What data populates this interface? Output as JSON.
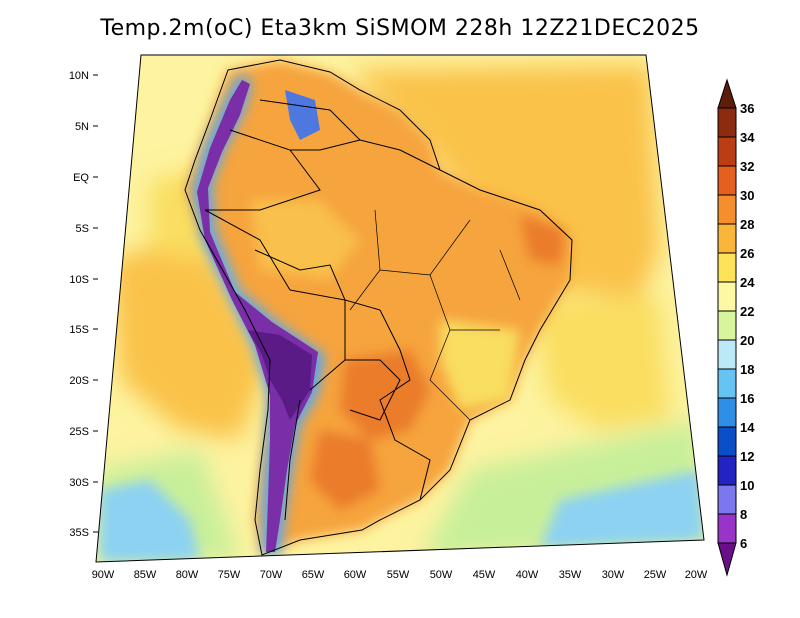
{
  "title": "Temp.2m(oC) Eta3km SiSMOM 228h 12Z21DEC2025",
  "latitude_labels": [
    "10N",
    "5N",
    "EQ",
    "5S",
    "10S",
    "15S",
    "20S",
    "25S",
    "30S",
    "35S"
  ],
  "longitude_labels": [
    "90W",
    "85W",
    "80W",
    "75W",
    "70W",
    "65W",
    "60W",
    "55W",
    "50W",
    "45W",
    "40W",
    "35W",
    "30W",
    "25W",
    "20W"
  ],
  "colorbar": {
    "labels": [
      "6",
      "8",
      "10",
      "12",
      "14",
      "16",
      "18",
      "20",
      "22",
      "24",
      "26",
      "28",
      "30",
      "32",
      "34",
      "36"
    ],
    "colors": [
      "#6a0f8a",
      "#9a34c8",
      "#7a78ec",
      "#2323c4",
      "#0a4fc8",
      "#2f8fe6",
      "#66c4f4",
      "#bbe9f7",
      "#d6f59c",
      "#fdf8a2",
      "#fde25a",
      "#f9b63a",
      "#f38f2c",
      "#e3601e",
      "#bb3d14",
      "#8c2b0f",
      "#5c1d0a"
    ]
  },
  "palette": {
    "ocean_warm": "#fac24a",
    "ocean_mild": "#f9de60",
    "ocean_cool": "#fdf3a0",
    "south_cool": "#c7ef9a",
    "south_cold": "#8dd2f2",
    "land": "#f6a43c",
    "land_hot": "#ea7b2c",
    "andes": "#7a2ea8"
  }
}
